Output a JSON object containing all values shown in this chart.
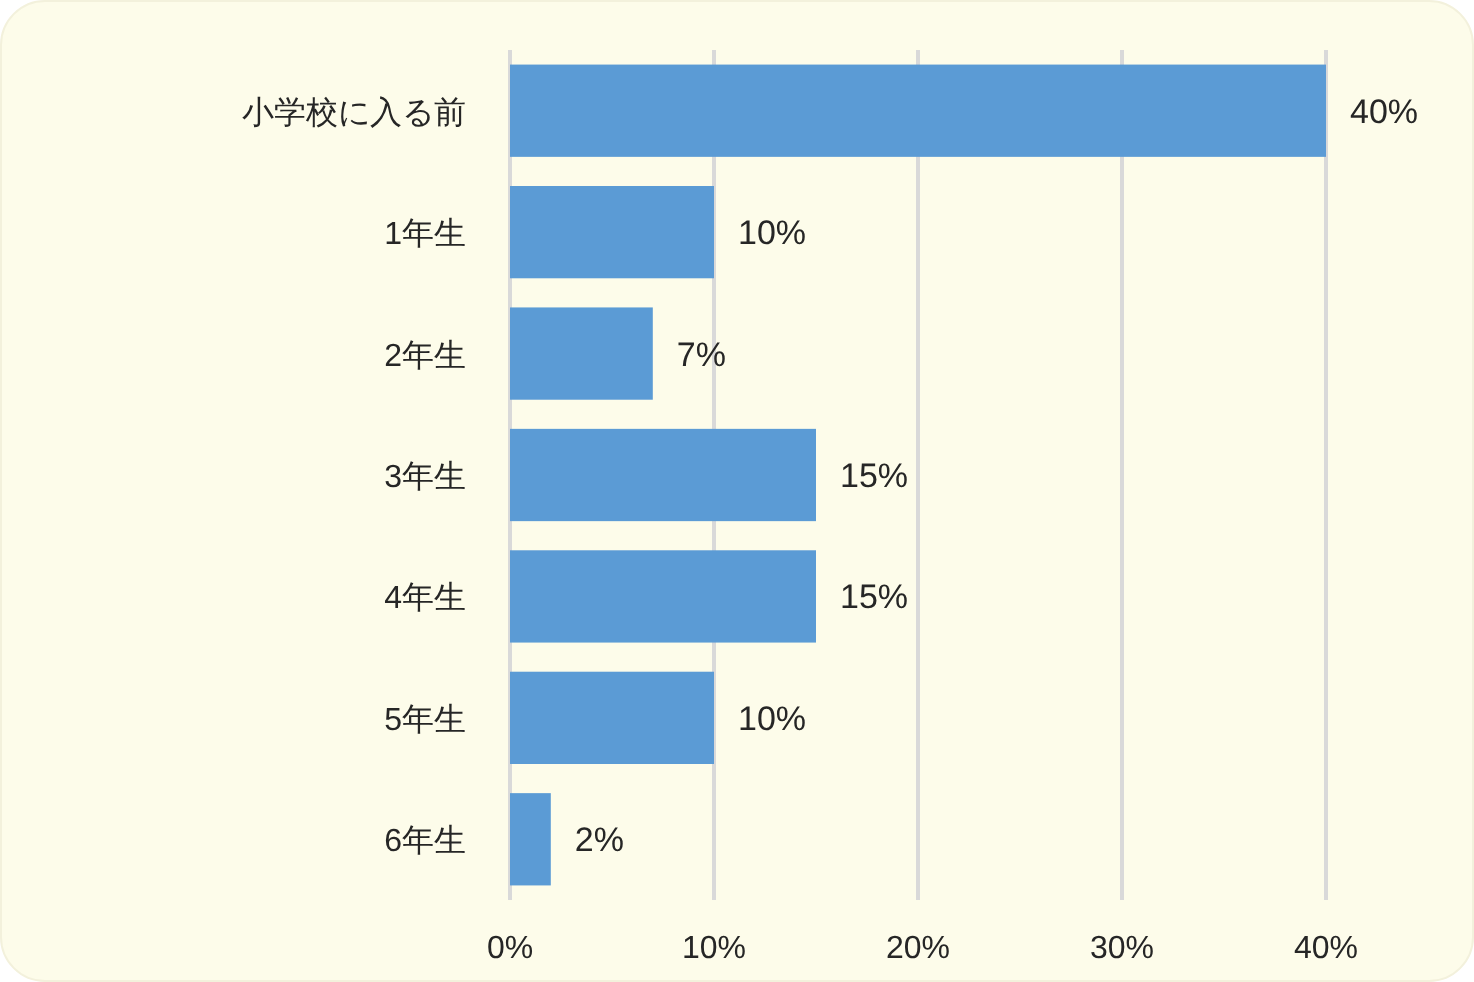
{
  "chart_data": {
    "type": "bar",
    "orientation": "horizontal",
    "categories": [
      "小学校に入る前",
      "1年生",
      "2年生",
      "3年生",
      "4年生",
      "5年生",
      "6年生"
    ],
    "values": [
      40,
      10,
      7,
      15,
      15,
      10,
      2
    ],
    "value_labels": [
      "40%",
      "10%",
      "7%",
      "15%",
      "15%",
      "10%",
      "2%"
    ],
    "color": "#5b9bd5",
    "xlim": [
      0,
      40
    ],
    "xticks": [
      {
        "value": 0,
        "label": "0%"
      },
      {
        "value": 10,
        "label": "10%"
      },
      {
        "value": 20,
        "label": "20%"
      },
      {
        "value": 30,
        "label": "30%"
      },
      {
        "value": 40,
        "label": "40%"
      }
    ],
    "grid": "x"
  }
}
